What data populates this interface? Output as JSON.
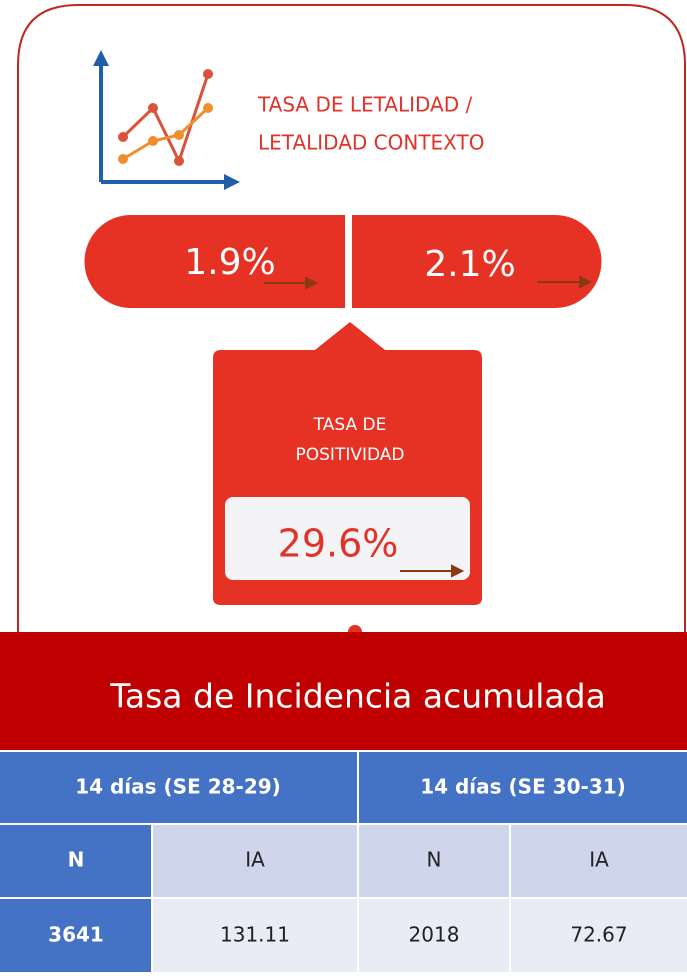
{
  "header": {
    "title_lines": [
      "TASA DE LETALIDAD /",
      "LETALIDAD CONTEXTO"
    ]
  },
  "letalidad": {
    "values": [
      "1.9%",
      "2.1%"
    ]
  },
  "positividad": {
    "title_lines": [
      "TASA DE",
      "POSITIVIDAD"
    ],
    "value": "29.6%"
  },
  "incidencia": {
    "title": "Tasa de Incidencia acumulada",
    "table": {
      "periods": [
        "14 días (SE 28-29)",
        "14 días (SE 30-31)"
      ],
      "columns": [
        "N",
        "IA",
        "N",
        "IA"
      ],
      "rows": [
        [
          "3641",
          "131.11",
          "2018",
          "72.67"
        ]
      ]
    }
  }
}
